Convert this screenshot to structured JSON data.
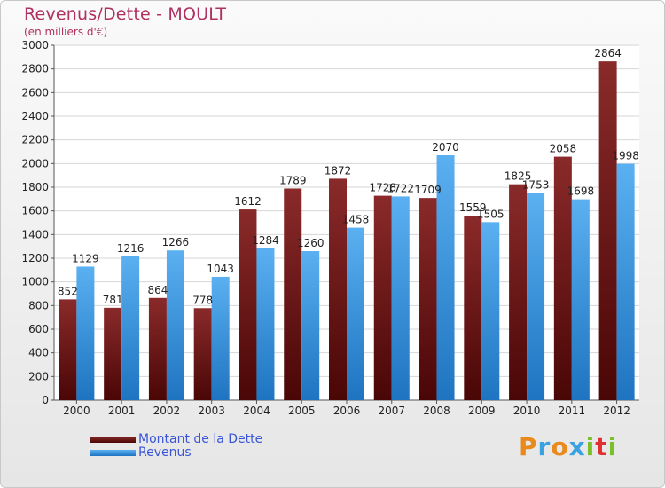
{
  "header": {
    "title": "Revenus/Dette - MOULT",
    "subtitle": "(en milliers d'€)"
  },
  "legend": {
    "items": [
      {
        "label": "Montant de la Dette",
        "color": "#6e1414"
      },
      {
        "label": "Revenus",
        "color": "#3d9ae4"
      }
    ]
  },
  "logo": {
    "text": "Proxiti"
  },
  "chart_data": {
    "type": "bar",
    "title": "Revenus/Dette - MOULT",
    "subtitle": "(en milliers d'€)",
    "categories": [
      "2000",
      "2001",
      "2002",
      "2003",
      "2004",
      "2005",
      "2006",
      "2007",
      "2008",
      "2009",
      "2010",
      "2011",
      "2012"
    ],
    "series": [
      {
        "name": "Montant de la Dette",
        "color": "#6e1414",
        "values": [
          852,
          781,
          864,
          778,
          1612,
          1789,
          1872,
          1728,
          1709,
          1559,
          1825,
          2058,
          2864
        ],
        "labels": [
          "852",
          "781",
          "864",
          "778",
          "1612",
          "1789",
          "1872",
          "1728",
          "1709",
          "1559",
          "1825",
          "2058",
          "2864"
        ]
      },
      {
        "name": "Revenus",
        "color": "#3d9ae4",
        "values": [
          1129,
          1216,
          1266,
          1043,
          1284,
          1260,
          1458,
          1722,
          2070,
          1505,
          1753,
          1698,
          1998
        ],
        "labels": [
          "1129",
          "1216",
          "1266",
          "1043",
          "1284",
          "1260",
          "1458",
          "1722",
          "2070",
          "1505",
          "1753",
          "1698",
          "1998"
        ]
      }
    ],
    "yticks": [
      "0",
      "200",
      "400",
      "600",
      "800",
      "1000",
      "1200",
      "1400",
      "1600",
      "1800",
      "2000",
      "2200",
      "2400",
      "2600",
      "2800",
      "3000"
    ],
    "ylim": [
      0,
      3000
    ],
    "grid": true,
    "legend_position": "bottom-left"
  }
}
